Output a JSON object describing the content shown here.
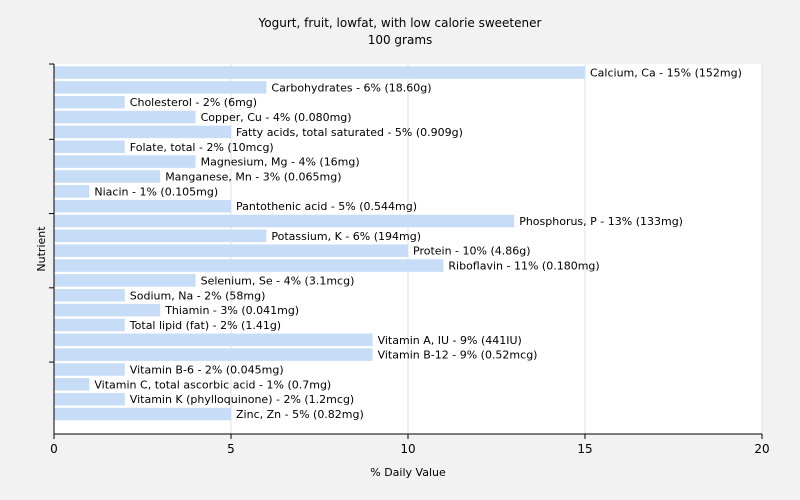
{
  "chart_data": {
    "type": "bar",
    "orientation": "horizontal",
    "title": "Yogurt, fruit, lowfat, with low calorie sweetener",
    "subtitle": "100 grams",
    "xlabel": "% Daily Value",
    "ylabel": "Nutrient",
    "xlim": [
      0,
      20
    ],
    "xticks": [
      0,
      5,
      10,
      15,
      20
    ],
    "grid": true,
    "colors": {
      "bar": "#c6dcf7",
      "plot_bg": "#ffffff",
      "page_bg": "#f2f2f2",
      "grid": "#e0e0e0",
      "axis": "#000000"
    },
    "categories": [
      "Calcium, Ca",
      "Carbohydrates",
      "Cholesterol",
      "Copper, Cu",
      "Fatty acids, total saturated",
      "Folate, total",
      "Magnesium, Mg",
      "Manganese, Mn",
      "Niacin",
      "Pantothenic acid",
      "Phosphorus, P",
      "Potassium, K",
      "Protein",
      "Riboflavin",
      "Selenium, Se",
      "Sodium, Na",
      "Thiamin",
      "Total lipid (fat)",
      "Vitamin A, IU",
      "Vitamin B-12",
      "Vitamin B-6",
      "Vitamin C, total ascorbic acid",
      "Vitamin K (phylloquinone)",
      "Zinc, Zn"
    ],
    "values": [
      15,
      6,
      2,
      4,
      5,
      2,
      4,
      3,
      1,
      5,
      13,
      6,
      10,
      11,
      4,
      2,
      3,
      2,
      9,
      9,
      2,
      1,
      2,
      5
    ],
    "labels": [
      "Calcium, Ca - 15% (152mg)",
      "Carbohydrates - 6% (18.60g)",
      "Cholesterol - 2% (6mg)",
      "Copper, Cu - 4% (0.080mg)",
      "Fatty acids, total saturated - 5% (0.909g)",
      "Folate, total - 2% (10mcg)",
      "Magnesium, Mg - 4% (16mg)",
      "Manganese, Mn - 3% (0.065mg)",
      "Niacin - 1% (0.105mg)",
      "Pantothenic acid - 5% (0.544mg)",
      "Phosphorus, P - 13% (133mg)",
      "Potassium, K - 6% (194mg)",
      "Protein - 10% (4.86g)",
      "Riboflavin - 11% (0.180mg)",
      "Selenium, Se - 4% (3.1mcg)",
      "Sodium, Na - 2% (58mg)",
      "Thiamin - 3% (0.041mg)",
      "Total lipid (fat) - 2% (1.41g)",
      "Vitamin A, IU - 9% (441IU)",
      "Vitamin B-12 - 9% (0.52mcg)",
      "Vitamin B-6 - 2% (0.045mg)",
      "Vitamin C, total ascorbic acid - 1% (0.7mg)",
      "Vitamin K (phylloquinone) - 2% (1.2mcg)",
      "Zinc, Zn - 5% (0.82mg)"
    ]
  }
}
